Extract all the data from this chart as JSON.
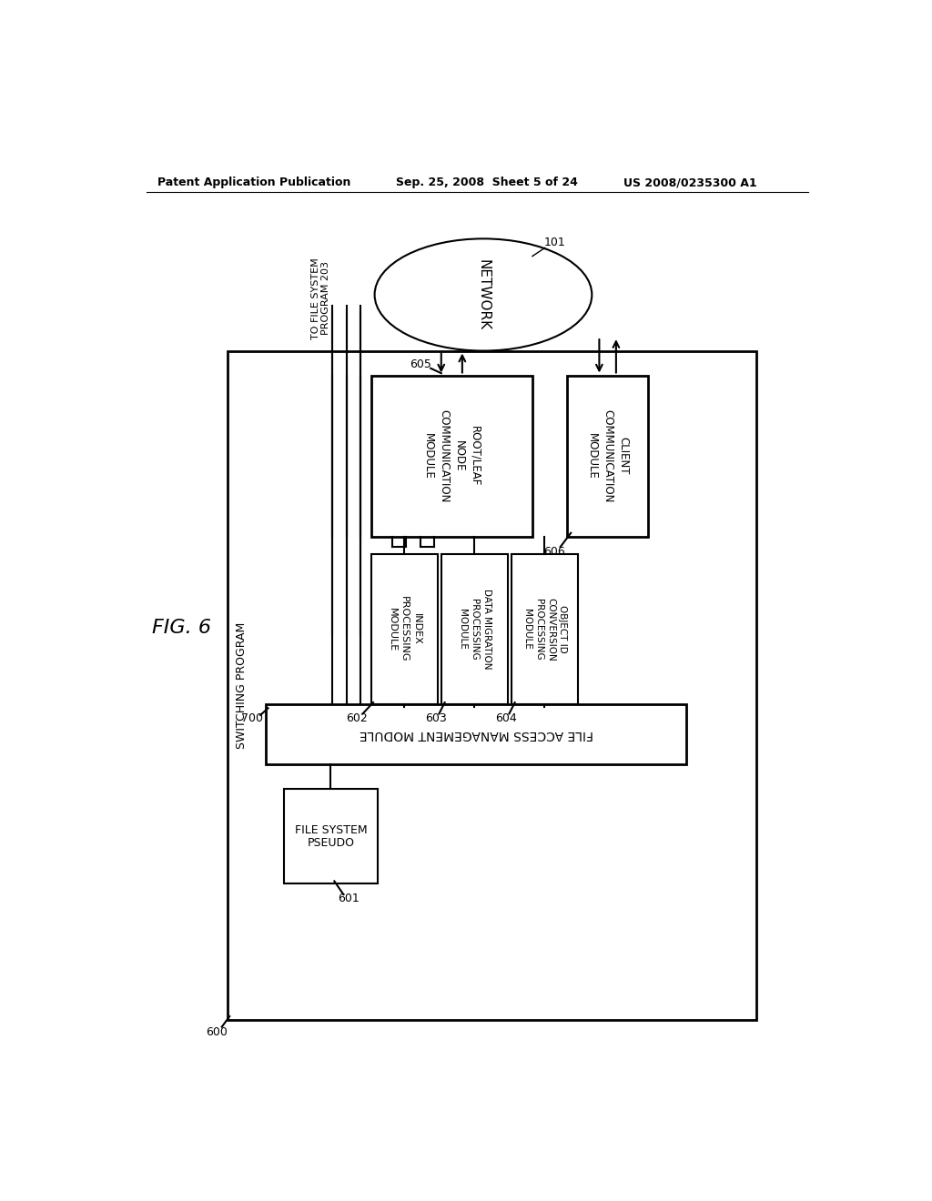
{
  "bg_color": "#ffffff",
  "line_color": "#000000",
  "header_left": "Patent Application Publication",
  "header_center": "Sep. 25, 2008  Sheet 5 of 24",
  "header_right": "US 2008/0235300 A1",
  "fig_label": "FIG. 6",
  "network_label": "NETWORK",
  "network_ref": "101",
  "switching_label": "SWITCHING PROGRAM",
  "switching_ref": "600",
  "pseudo_fs_line1": "PSEUDO",
  "pseudo_fs_line2": "FILE SYSTEM",
  "pseudo_fs_ref": "601",
  "index_label": "INDEX\nPROCESSING\nMODULE",
  "index_ref": "602",
  "data_mig_label": "DATA MIGRATION\nPROCESSING\nMODULE",
  "data_mig_ref": "603",
  "obj_id_label": "OBJECT ID\nCONVERSION\nPROCESSING\nMODULE",
  "obj_id_ref": "604",
  "root_leaf_label": "ROOT/LEAF\nNODE\nCOMMUNICATION\nMODULE",
  "root_leaf_ref": "605",
  "client_comm_label": "CLIENT\nCOMMUNICATION\nMODULE",
  "client_comm_ref": "606",
  "file_access_label": "FILE ACCESS MANAGEMENT MODULE",
  "file_access_ref": "700",
  "to_fs_label": "TO FILE SYSTEM\nPROGRAM 203"
}
